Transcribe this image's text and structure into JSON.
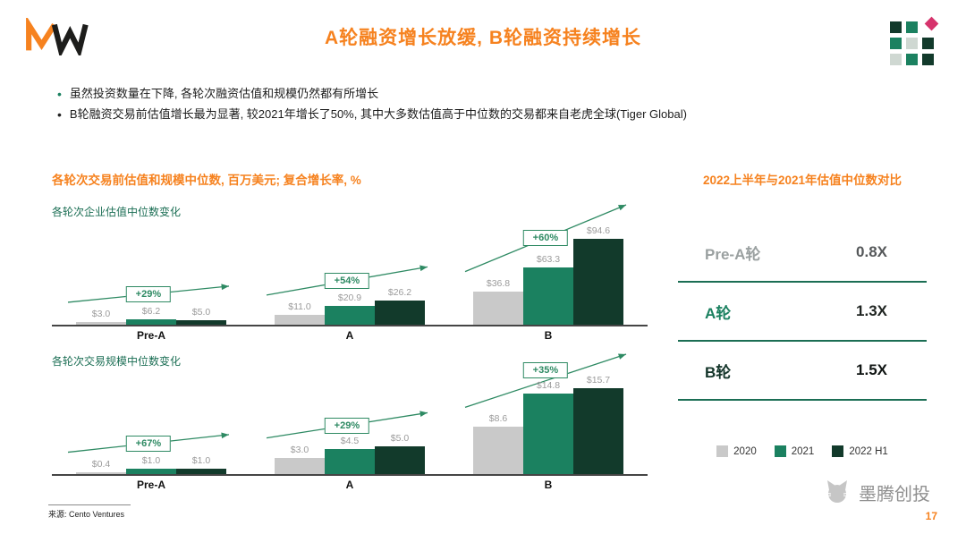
{
  "slide": {
    "title": "A轮融资增长放缓, B轮融资持续增长",
    "logo": "MW",
    "page_number": "17",
    "source": "来源: Cento Ventures",
    "watermark": "墨腾创投"
  },
  "bullets": [
    {
      "dot_color": "#1b8160",
      "text": "虽然投资数量在下降, 各轮次融资估值和规模仍然都有所增长"
    },
    {
      "dot_color": "#222222",
      "text": "B轮融资交易前估值增长最为显著, 较2021年增长了50%, 其中大多数估值高于中位数的交易都来自老虎全球(Tiger Global)"
    }
  ],
  "left_section": {
    "header": "各轮次交易前估值和规模中位数, 百万美元; 复合增长率, %"
  },
  "legend": {
    "items": [
      {
        "label": "2020",
        "color": "#c9c9c9"
      },
      {
        "label": "2021",
        "color": "#1b8160"
      },
      {
        "label": "2022 H1",
        "color": "#123a2b"
      }
    ]
  },
  "chart_data": [
    {
      "type": "bar",
      "title": "各轮次企业估值中位数变化",
      "unit": "百万美元",
      "categories": [
        "Pre-A",
        "A",
        "B"
      ],
      "series": [
        {
          "name": "2020",
          "values": [
            3.0,
            11.0,
            36.8
          ]
        },
        {
          "name": "2021",
          "values": [
            6.2,
            20.9,
            63.3
          ]
        },
        {
          "name": "2022 H1",
          "values": [
            5.0,
            26.2,
            94.6
          ]
        }
      ],
      "value_labels": [
        [
          "$3.0",
          "$6.2",
          "$5.0"
        ],
        [
          "$11.0",
          "$20.9",
          "$26.2"
        ],
        [
          "$36.8",
          "$63.3",
          "$94.6"
        ]
      ],
      "growth_labels": [
        "+29%",
        "+54%",
        "+60%"
      ],
      "legend_position": "bottom-right",
      "grid": false,
      "ylim": [
        0,
        100
      ]
    },
    {
      "type": "bar",
      "title": "各轮次交易规模中位数变化",
      "unit": "百万美元",
      "categories": [
        "Pre-A",
        "A",
        "B"
      ],
      "series": [
        {
          "name": "2020",
          "values": [
            0.4,
            3.0,
            8.6
          ]
        },
        {
          "name": "2021",
          "values": [
            1.0,
            4.5,
            14.8
          ]
        },
        {
          "name": "2022 H1",
          "values": [
            1.0,
            5.0,
            15.7
          ]
        }
      ],
      "value_labels": [
        [
          "$0.4",
          "$1.0",
          "$1.0"
        ],
        [
          "$3.0",
          "$4.5",
          "$5.0"
        ],
        [
          "$8.6",
          "$14.8",
          "$15.7"
        ]
      ],
      "growth_labels": [
        "+67%",
        "+29%",
        "+35%"
      ],
      "legend_position": "bottom-right",
      "grid": false,
      "ylim": [
        0,
        16
      ]
    },
    {
      "type": "table",
      "title": "2022上半年与2021年估值中位数对比",
      "rows": [
        {
          "label": "Pre-A轮",
          "value": "0.8X",
          "label_color": "#9aa0a0",
          "value_color": "#55585a"
        },
        {
          "label": "A轮",
          "value": "1.3X",
          "label_color": "#1b8160",
          "value_color": "#1f2421"
        },
        {
          "label": "B轮",
          "value": "1.5X",
          "label_color": "#14352a",
          "value_color": "#101513"
        }
      ]
    }
  ],
  "colors": {
    "accent_orange": "#F6821F",
    "green": "#1b8160",
    "dark_green": "#123a2b",
    "gray_bar": "#c9c9c9",
    "value_label": "#9b9b9b",
    "series": [
      "#c9c9c9",
      "#1b8160",
      "#123a2b"
    ],
    "badge_green": "#2e8a63",
    "divider": "#1b6e54",
    "diamond_pink": "#d6336c"
  },
  "decor": {
    "rows": [
      [
        {
          "color": "#123a2b"
        },
        {
          "color": "#1b8160"
        },
        {
          "color": "#d6336c",
          "shape": "diamond"
        }
      ],
      [
        {
          "color": "#1b8160"
        },
        {
          "color": "#cfd8d2"
        },
        {
          "color": "#123a2b"
        }
      ],
      [
        {
          "color": "#cfd8d2"
        },
        {
          "color": "#1b8160"
        },
        {
          "color": "#123a2b"
        }
      ]
    ]
  }
}
